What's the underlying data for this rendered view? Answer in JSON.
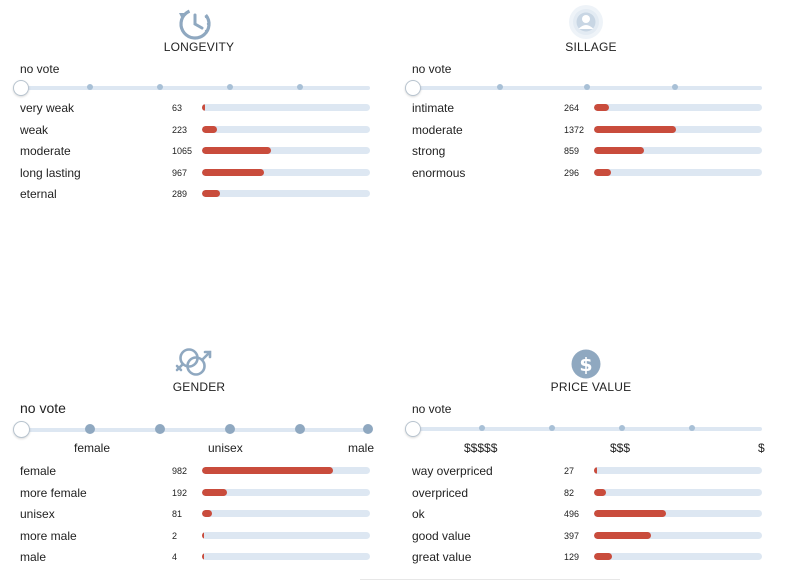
{
  "colors": {
    "accent": "#c94c3c",
    "track": "#dde7f2",
    "icon": "#8fa8c0"
  },
  "longevity": {
    "icon": "clock-refresh-icon",
    "title": "LONGEVITY",
    "no_vote": "no vote",
    "dots": 4,
    "rows": [
      {
        "label": "very weak",
        "count": "63",
        "pct": 0.02
      },
      {
        "label": "weak",
        "count": "223",
        "pct": 0.09
      },
      {
        "label": "moderate",
        "count": "1065",
        "pct": 0.41
      },
      {
        "label": "long lasting",
        "count": "967",
        "pct": 0.37
      },
      {
        "label": "eternal",
        "count": "289",
        "pct": 0.11
      }
    ]
  },
  "sillage": {
    "icon": "sillage-person-icon",
    "title": "SILLAGE",
    "no_vote": "no vote",
    "dots": 3,
    "rows": [
      {
        "label": "intimate",
        "count": "264",
        "pct": 0.09
      },
      {
        "label": "moderate",
        "count": "1372",
        "pct": 0.49
      },
      {
        "label": "strong",
        "count": "859",
        "pct": 0.3
      },
      {
        "label": "enormous",
        "count": "296",
        "pct": 0.1
      }
    ]
  },
  "gender": {
    "icon": "gender-symbols-icon",
    "title": "GENDER",
    "no_vote": "no vote",
    "ticks": [
      {
        "label": "female"
      },
      {
        "label": "unisex"
      },
      {
        "label": "male"
      }
    ],
    "rows": [
      {
        "label": "female",
        "count": "982",
        "pct": 0.78
      },
      {
        "label": "more female",
        "count": "192",
        "pct": 0.15
      },
      {
        "label": "unisex",
        "count": "81",
        "pct": 0.06
      },
      {
        "label": "more male",
        "count": "2",
        "pct": 0.005
      },
      {
        "label": "male",
        "count": "4",
        "pct": 0.005
      }
    ]
  },
  "price": {
    "icon": "dollar-coin-icon",
    "title": "PRICE VALUE",
    "no_vote": "no vote",
    "ticks": [
      {
        "label": "$$$$$"
      },
      {
        "label": "$$$"
      },
      {
        "label": "$"
      }
    ],
    "rows": [
      {
        "label": "way overpriced",
        "count": "27",
        "pct": 0.02
      },
      {
        "label": "overpriced",
        "count": "82",
        "pct": 0.07
      },
      {
        "label": "ok",
        "count": "496",
        "pct": 0.43
      },
      {
        "label": "good value",
        "count": "397",
        "pct": 0.34
      },
      {
        "label": "great value",
        "count": "129",
        "pct": 0.11
      }
    ]
  }
}
